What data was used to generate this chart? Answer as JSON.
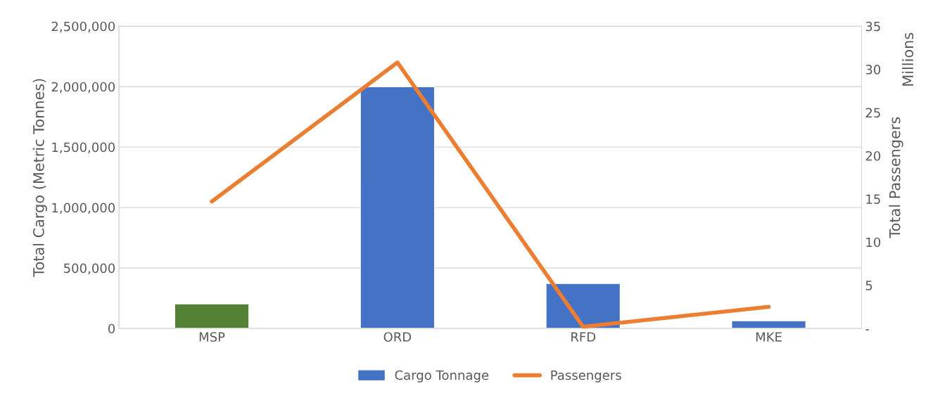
{
  "chart_data": {
    "type": "bar",
    "ylabel": "Total Cargo (Metric Tonnes)",
    "y2label": "Total Passengers",
    "annotations": [
      "Millions"
    ],
    "categories": [
      "MSP",
      "ORD",
      "RFD",
      "MKE"
    ],
    "series": [
      {
        "name": "Cargo Tonnage",
        "color": "#4472c4",
        "colors": [
          "#548235",
          "#4472c4",
          "#4472c4",
          "#4472c4"
        ],
        "values": [
          203000,
          2000000,
          372000,
          64000
        ]
      },
      {
        "name": "Passengers",
        "type": "line",
        "axis": "y2",
        "color": "#ed7d31",
        "values": [
          14.7,
          30.8,
          0.2,
          2.5
        ]
      }
    ],
    "ylim": [
      0,
      2500000
    ],
    "yticks": [
      {
        "value": 0,
        "label": "0"
      },
      {
        "value": 500000,
        "label": "500,000"
      },
      {
        "value": 1000000,
        "label": "1,000,000"
      },
      {
        "value": 1500000,
        "label": "1,500,000"
      },
      {
        "value": 2000000,
        "label": "2,000,000"
      },
      {
        "value": 2500000,
        "label": "2,500,000"
      }
    ],
    "y2lim": [
      0,
      35
    ],
    "y2ticks": [
      {
        "value": 0,
        "label": "-"
      },
      5,
      10,
      15,
      20,
      25,
      30,
      35
    ],
    "grid": "y",
    "legend": "bottom",
    "marker": "none",
    "line_style": "solid"
  }
}
